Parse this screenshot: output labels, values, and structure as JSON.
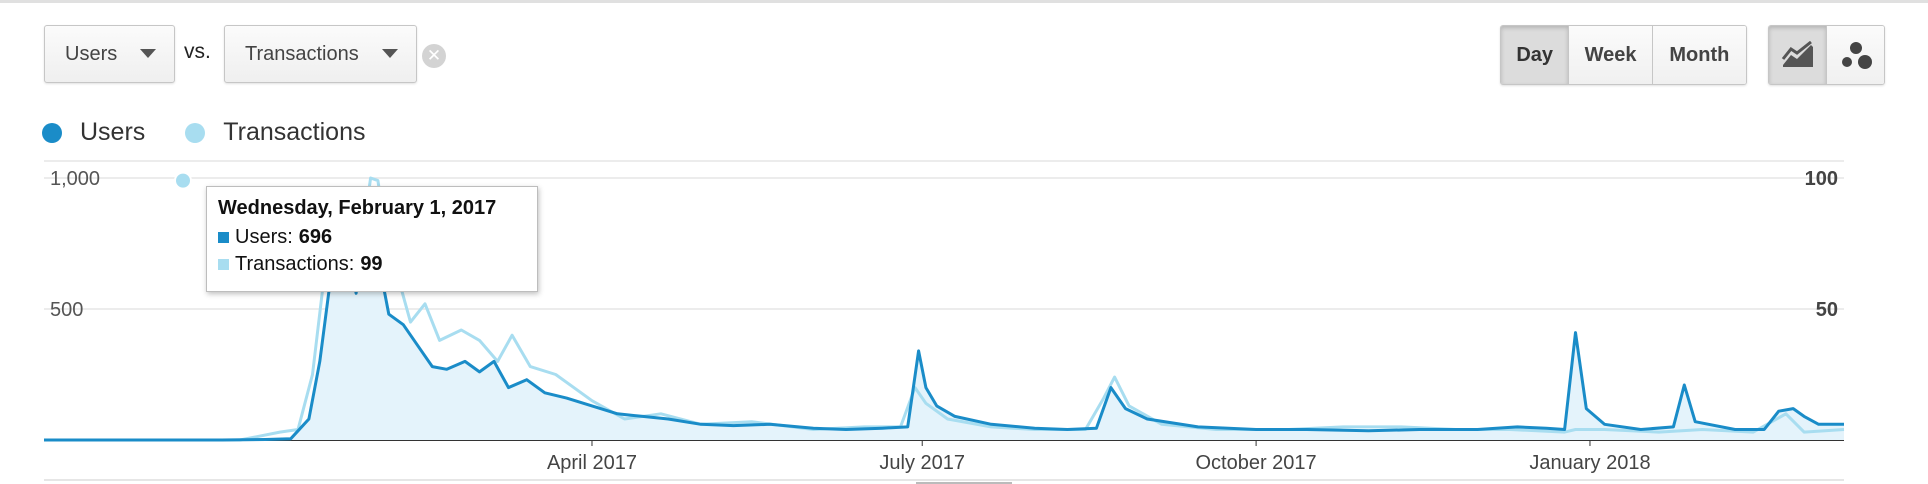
{
  "controls": {
    "metric1": "Users",
    "vs_label": "vs.",
    "metric2": "Transactions",
    "clear_icon": "close-circle-icon",
    "period_buttons": [
      "Day",
      "Week",
      "Month"
    ],
    "active_period": "Day",
    "chart_type_icons": [
      "line-chart-icon",
      "motion-chart-icon"
    ]
  },
  "colors": {
    "users": "#1a8cc8",
    "transactions": "#a8ddf0",
    "area_fill": "#e4f3fb",
    "gridline": "#e6e6e6",
    "axis": "#333333"
  },
  "tooltip": {
    "date": "Wednesday, February 1, 2017",
    "users_label": "Users:",
    "users_value": "696",
    "transactions_label": "Transactions:",
    "transactions_value": "99"
  },
  "chart_data": {
    "type": "line",
    "legend": [
      "Users",
      "Transactions"
    ],
    "legend_position": "top-left",
    "x_ticks": [
      "April 2017",
      "July 2017",
      "October 2017",
      "January 2018"
    ],
    "x_tick_dates": [
      "2017-04-01",
      "2017-07-01",
      "2017-10-01",
      "2018-01-01"
    ],
    "x_range": [
      "2016-11-01",
      "2018-03-12"
    ],
    "y_left": {
      "label": "",
      "ticks": [
        "500",
        "1,000"
      ],
      "tick_values": [
        500,
        1000
      ],
      "range": [
        0,
        1000
      ]
    },
    "y_right": {
      "label": "",
      "ticks": [
        "50",
        "100"
      ],
      "tick_values": [
        50,
        100
      ],
      "range": [
        0,
        100
      ]
    },
    "grid": true,
    "series": [
      {
        "name": "Users",
        "axis": "left",
        "points": [
          [
            "2016-11-01",
            0
          ],
          [
            "2016-12-20",
            0
          ],
          [
            "2017-01-01",
            2
          ],
          [
            "2017-01-08",
            5
          ],
          [
            "2017-01-13",
            80
          ],
          [
            "2017-01-16",
            300
          ],
          [
            "2017-01-19",
            620
          ],
          [
            "2017-01-22",
            770
          ],
          [
            "2017-01-24",
            720
          ],
          [
            "2017-01-26",
            560
          ],
          [
            "2017-01-28",
            760
          ],
          [
            "2017-01-30",
            640
          ],
          [
            "2017-02-01",
            696
          ],
          [
            "2017-02-04",
            480
          ],
          [
            "2017-02-08",
            440
          ],
          [
            "2017-02-12",
            360
          ],
          [
            "2017-02-16",
            280
          ],
          [
            "2017-02-20",
            270
          ],
          [
            "2017-02-25",
            300
          ],
          [
            "2017-03-01",
            260
          ],
          [
            "2017-03-05",
            300
          ],
          [
            "2017-03-09",
            200
          ],
          [
            "2017-03-14",
            230
          ],
          [
            "2017-03-19",
            180
          ],
          [
            "2017-03-25",
            160
          ],
          [
            "2017-04-01",
            130
          ],
          [
            "2017-04-08",
            100
          ],
          [
            "2017-04-15",
            90
          ],
          [
            "2017-04-22",
            80
          ],
          [
            "2017-05-01",
            60
          ],
          [
            "2017-05-10",
            55
          ],
          [
            "2017-05-20",
            60
          ],
          [
            "2017-06-01",
            45
          ],
          [
            "2017-06-10",
            40
          ],
          [
            "2017-06-20",
            45
          ],
          [
            "2017-06-27",
            50
          ],
          [
            "2017-06-30",
            340
          ],
          [
            "2017-07-02",
            200
          ],
          [
            "2017-07-05",
            130
          ],
          [
            "2017-07-10",
            90
          ],
          [
            "2017-07-20",
            60
          ],
          [
            "2017-08-01",
            45
          ],
          [
            "2017-08-10",
            40
          ],
          [
            "2017-08-18",
            45
          ],
          [
            "2017-08-22",
            200
          ],
          [
            "2017-08-26",
            120
          ],
          [
            "2017-09-01",
            80
          ],
          [
            "2017-09-15",
            50
          ],
          [
            "2017-10-01",
            40
          ],
          [
            "2017-10-15",
            40
          ],
          [
            "2017-11-01",
            35
          ],
          [
            "2017-11-15",
            40
          ],
          [
            "2017-12-01",
            40
          ],
          [
            "2017-12-12",
            50
          ],
          [
            "2017-12-20",
            45
          ],
          [
            "2017-12-25",
            40
          ],
          [
            "2017-12-28",
            410
          ],
          [
            "2017-12-31",
            120
          ],
          [
            "2018-01-05",
            60
          ],
          [
            "2018-01-15",
            40
          ],
          [
            "2018-01-24",
            50
          ],
          [
            "2018-01-27",
            210
          ],
          [
            "2018-01-30",
            70
          ],
          [
            "2018-02-10",
            40
          ],
          [
            "2018-02-18",
            40
          ],
          [
            "2018-02-22",
            110
          ],
          [
            "2018-02-26",
            120
          ],
          [
            "2018-03-01",
            90
          ],
          [
            "2018-03-05",
            60
          ],
          [
            "2018-03-12",
            60
          ]
        ]
      },
      {
        "name": "Transactions",
        "axis": "right",
        "points": [
          [
            "2016-11-01",
            0
          ],
          [
            "2016-12-25",
            0
          ],
          [
            "2017-01-05",
            3
          ],
          [
            "2017-01-10",
            4
          ],
          [
            "2017-01-14",
            25
          ],
          [
            "2017-01-17",
            60
          ],
          [
            "2017-01-21",
            95
          ],
          [
            "2017-01-24",
            88
          ],
          [
            "2017-01-27",
            70
          ],
          [
            "2017-01-30",
            100
          ],
          [
            "2017-02-01",
            99
          ],
          [
            "2017-02-04",
            72
          ],
          [
            "2017-02-07",
            60
          ],
          [
            "2017-02-10",
            45
          ],
          [
            "2017-02-14",
            52
          ],
          [
            "2017-02-18",
            38
          ],
          [
            "2017-02-24",
            42
          ],
          [
            "2017-03-01",
            38
          ],
          [
            "2017-03-06",
            30
          ],
          [
            "2017-03-10",
            40
          ],
          [
            "2017-03-15",
            28
          ],
          [
            "2017-03-22",
            25
          ],
          [
            "2017-04-01",
            15
          ],
          [
            "2017-04-10",
            8
          ],
          [
            "2017-04-20",
            10
          ],
          [
            "2017-05-01",
            6
          ],
          [
            "2017-05-15",
            7
          ],
          [
            "2017-06-01",
            4
          ],
          [
            "2017-06-15",
            5
          ],
          [
            "2017-06-25",
            5
          ],
          [
            "2017-06-29",
            20
          ],
          [
            "2017-07-02",
            14
          ],
          [
            "2017-07-08",
            8
          ],
          [
            "2017-07-20",
            5
          ],
          [
            "2017-08-01",
            4
          ],
          [
            "2017-08-15",
            4
          ],
          [
            "2017-08-20",
            16
          ],
          [
            "2017-08-23",
            24
          ],
          [
            "2017-08-27",
            13
          ],
          [
            "2017-09-05",
            6
          ],
          [
            "2017-09-20",
            4
          ],
          [
            "2017-10-10",
            4
          ],
          [
            "2017-10-25",
            5
          ],
          [
            "2017-11-10",
            5
          ],
          [
            "2017-11-25",
            4
          ],
          [
            "2017-12-10",
            4
          ],
          [
            "2017-12-25",
            3
          ],
          [
            "2017-12-28",
            4
          ],
          [
            "2018-01-05",
            4
          ],
          [
            "2018-01-20",
            3
          ],
          [
            "2018-02-01",
            4
          ],
          [
            "2018-02-15",
            3
          ],
          [
            "2018-02-24",
            10
          ],
          [
            "2018-03-01",
            3
          ],
          [
            "2018-03-12",
            4
          ]
        ]
      }
    ],
    "highlight": {
      "date": "2017-02-01",
      "users": 696,
      "transactions": 99
    }
  }
}
